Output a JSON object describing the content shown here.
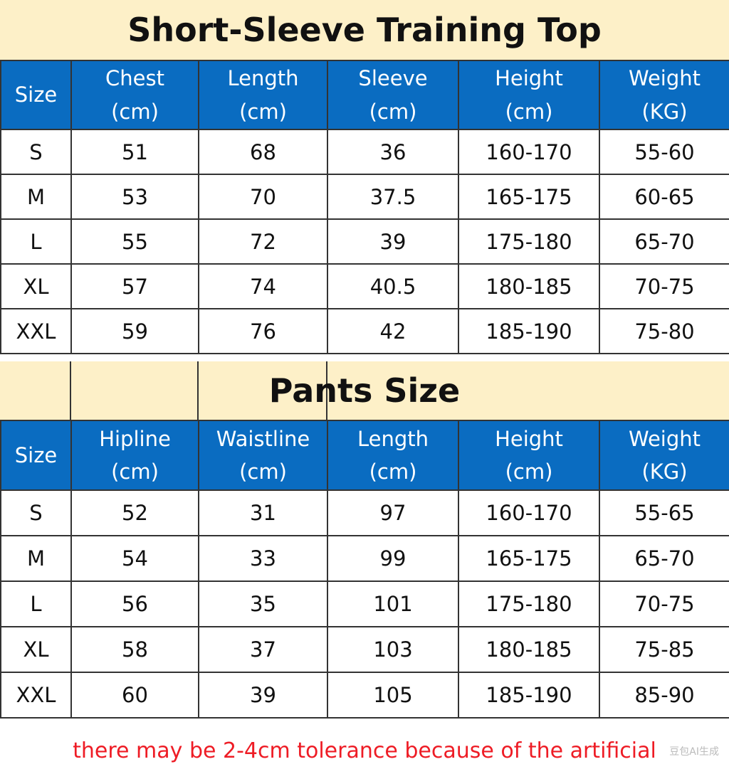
{
  "top": {
    "title": "Short-Sleeve Training Top",
    "headers": [
      [
        "Size",
        ""
      ],
      [
        "Chest",
        "(cm)"
      ],
      [
        "Length",
        "(cm)"
      ],
      [
        "Sleeve",
        "(cm)"
      ],
      [
        "Height",
        "(cm)"
      ],
      [
        "Weight",
        "(KG)"
      ]
    ],
    "rows": [
      [
        "S",
        "51",
        "68",
        "36",
        "160-170",
        "55-60"
      ],
      [
        "M",
        "53",
        "70",
        "37.5",
        "165-175",
        "60-65"
      ],
      [
        "L",
        "55",
        "72",
        "39",
        "175-180",
        "65-70"
      ],
      [
        "XL",
        "57",
        "74",
        "40.5",
        "180-185",
        "70-75"
      ],
      [
        "XXL",
        "59",
        "76",
        "42",
        "185-190",
        "75-80"
      ]
    ]
  },
  "pants": {
    "title": "Pants Size",
    "headers": [
      [
        "Size",
        ""
      ],
      [
        "Hipline",
        "(cm)"
      ],
      [
        "Waistline",
        "(cm)"
      ],
      [
        "Length",
        "(cm)"
      ],
      [
        "Height",
        "(cm)"
      ],
      [
        "Weight",
        "(KG)"
      ]
    ],
    "rows": [
      [
        "S",
        "52",
        "31",
        "97",
        "160-170",
        "55-65"
      ],
      [
        "M",
        "54",
        "33",
        "99",
        "165-175",
        "65-70"
      ],
      [
        "L",
        "56",
        "35",
        "101",
        "175-180",
        "70-75"
      ],
      [
        "XL",
        "58",
        "37",
        "103",
        "180-185",
        "75-85"
      ],
      [
        "XXL",
        "60",
        "39",
        "105",
        "185-190",
        "85-90"
      ]
    ]
  },
  "footer_note": "there may be 2-4cm tolerance because of the artificial",
  "watermark": "豆包AI生成",
  "colors": {
    "header_blue": "#0A6CC1",
    "title_band": "#FDF0C8",
    "note_red": "#EE1C25"
  }
}
